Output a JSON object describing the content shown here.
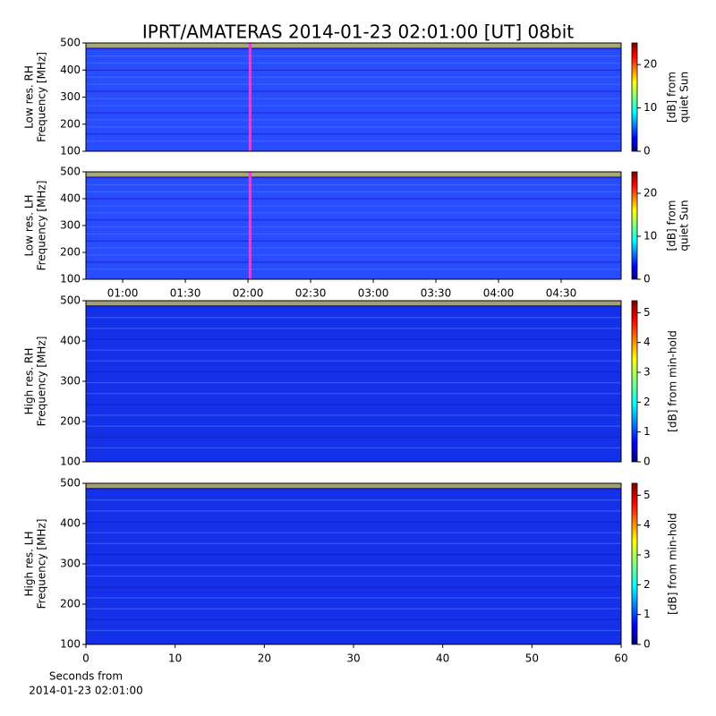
{
  "title": "IPRT/AMATERAS 2014-01-23 02:01:00 [UT]   08bit",
  "chart_data": [
    {
      "type": "spectrogram",
      "ylabel": [
        "Low res. RH",
        "Frequency [MHz]"
      ],
      "ylim": [
        100,
        500
      ],
      "yticks": [
        100,
        200,
        300,
        400,
        500
      ],
      "xlim": [
        42.4,
        298.7
      ],
      "marker_x": 121,
      "marker_color": "#e040e0",
      "background_color": "#2a4cff",
      "clim": [
        0,
        25
      ],
      "cticks": [
        0,
        10,
        20
      ],
      "colorbar_label": [
        "[dB] from",
        "quiet Sun"
      ]
    },
    {
      "type": "spectrogram",
      "ylabel": [
        "Low res. LH",
        "Frequency [MHz]"
      ],
      "ylim": [
        100,
        500
      ],
      "yticks": [
        100,
        200,
        300,
        400,
        500
      ],
      "xlim": [
        42.4,
        298.7
      ],
      "marker_x": 121,
      "marker_color": "#e040e0",
      "background_color": "#2a4cff",
      "xticks": [
        {
          "value": 60,
          "label": "01:00"
        },
        {
          "value": 90,
          "label": "01:30"
        },
        {
          "value": 120,
          "label": "02:00"
        },
        {
          "value": 150,
          "label": "02:30"
        },
        {
          "value": 180,
          "label": "03:00"
        },
        {
          "value": 210,
          "label": "03:30"
        },
        {
          "value": 240,
          "label": "04:00"
        },
        {
          "value": 270,
          "label": "04:30"
        }
      ],
      "clim": [
        0,
        25
      ],
      "cticks": [
        0,
        10,
        20
      ],
      "colorbar_label": [
        "[dB] from",
        "quiet Sun"
      ]
    },
    {
      "type": "spectrogram",
      "ylabel": [
        "High res. RH",
        "Frequency [MHz]"
      ],
      "ylim": [
        100,
        500
      ],
      "yticks": [
        100,
        200,
        300,
        400,
        500
      ],
      "xlim": [
        0,
        60
      ],
      "background_color": "#1530e8",
      "clim": [
        0,
        5.4
      ],
      "cticks": [
        0,
        1,
        2,
        3,
        4,
        5
      ],
      "colorbar_label": [
        "[dB] from min-hold"
      ]
    },
    {
      "type": "spectrogram",
      "ylabel": [
        "High res. LH",
        "Frequency [MHz]"
      ],
      "ylim": [
        100,
        500
      ],
      "yticks": [
        100,
        200,
        300,
        400,
        500
      ],
      "xlim": [
        0,
        60
      ],
      "xticks": [
        0,
        10,
        20,
        30,
        40,
        50,
        60
      ],
      "background_color": "#1530e8",
      "clim": [
        0,
        5.4
      ],
      "cticks": [
        0,
        1,
        2,
        3,
        4,
        5
      ],
      "colorbar_label": [
        "[dB] from min-hold"
      ],
      "xlabel": [
        "Seconds from",
        "2014-01-23 02:01:00"
      ]
    }
  ]
}
